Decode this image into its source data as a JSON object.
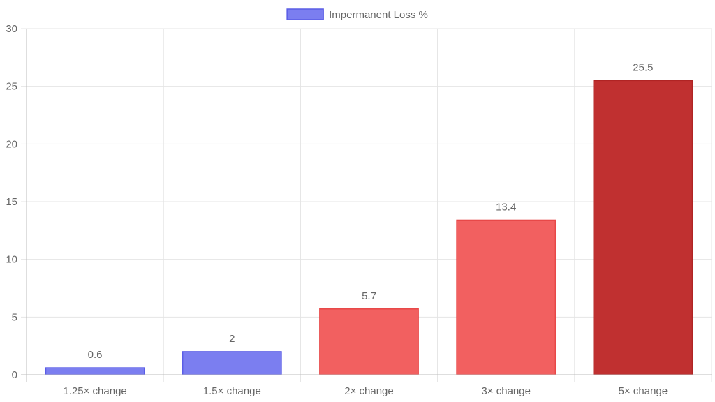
{
  "chart_data": {
    "type": "bar",
    "categories": [
      "1.25× change",
      "1.5× change",
      "2× change",
      "3× change",
      "5× change"
    ],
    "series": [
      {
        "name": "Impermanent Loss %",
        "values": [
          0.6,
          2,
          5.7,
          13.4,
          25.5
        ],
        "colors": [
          "#7b7ef0",
          "#7b7ef0",
          "#f26060",
          "#f26060",
          "#c03030"
        ],
        "border_colors": [
          "#5a5de6",
          "#5a5de6",
          "#e84848",
          "#e84848",
          "#b02424"
        ]
      }
    ],
    "data_labels": [
      "0.6",
      "2",
      "5.7",
      "13.4",
      "25.5"
    ],
    "y_ticks": [
      "0",
      "5",
      "10",
      "15",
      "20",
      "25",
      "30"
    ],
    "ylim": [
      0,
      30
    ],
    "grid": true,
    "legend": {
      "position": "top",
      "label": "Impermanent Loss %",
      "swatch_color": "#7b7ef0",
      "swatch_border": "#5a5de6"
    },
    "title": "",
    "xlabel": "",
    "ylabel": ""
  }
}
